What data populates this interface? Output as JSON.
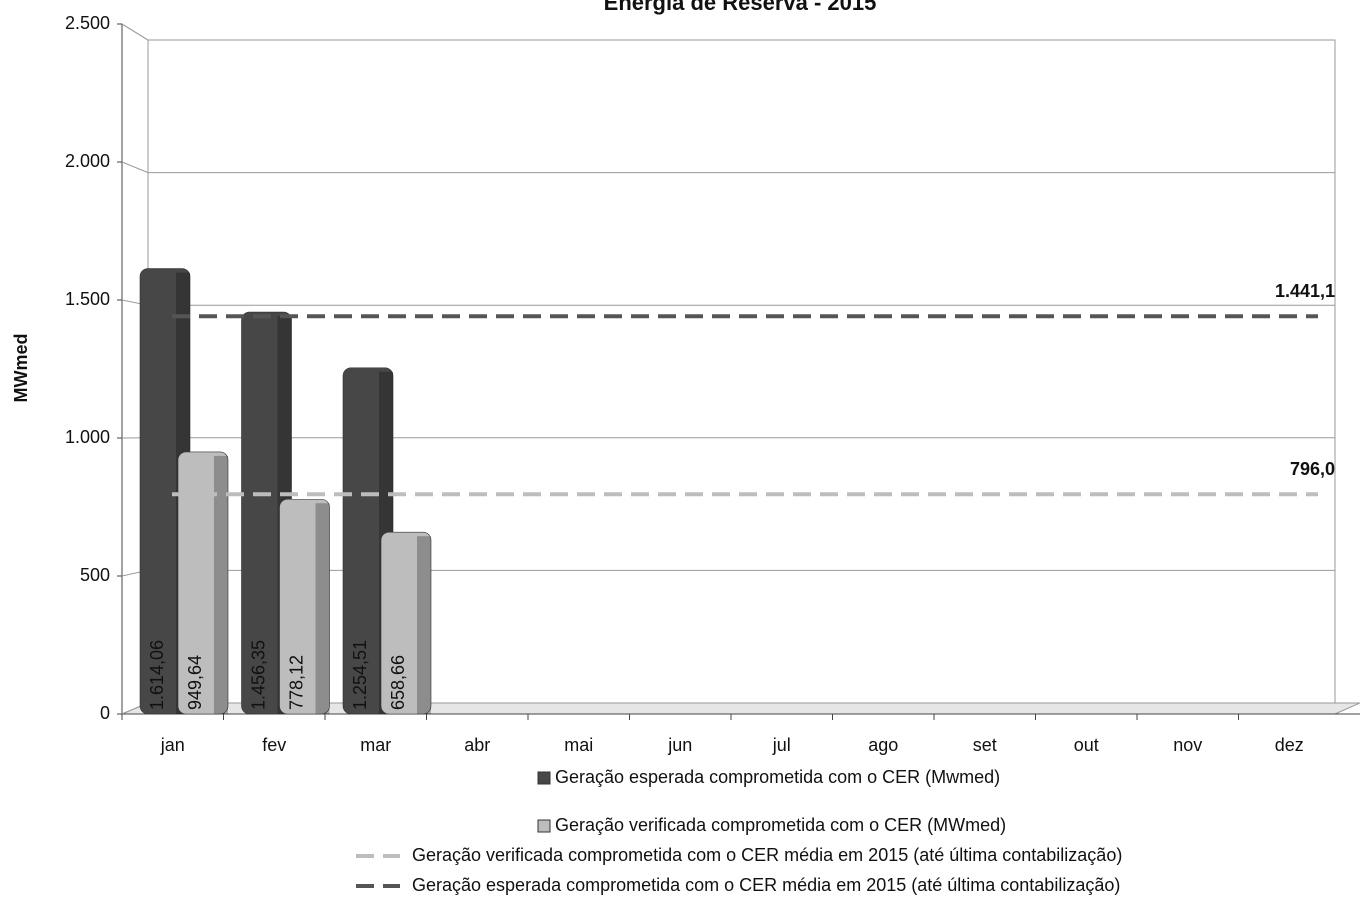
{
  "chart_data": {
    "type": "bar",
    "title": "Energia de Reserva - 2015",
    "y_label": "MWmed",
    "categories": [
      "jan",
      "fev",
      "mar",
      "abr",
      "mai",
      "jun",
      "jul",
      "ago",
      "set",
      "out",
      "nov",
      "dez"
    ],
    "series": [
      {
        "name": "Geração esperada comprometida com o CER (Mwmed)",
        "color": "#474747",
        "values": [
          1614.06,
          1456.35,
          1254.51,
          null,
          null,
          null,
          null,
          null,
          null,
          null,
          null,
          null
        ],
        "value_labels": [
          "1.614,06",
          "1.456,35",
          "1.254,51",
          null,
          null,
          null,
          null,
          null,
          null,
          null,
          null,
          null
        ]
      },
      {
        "name": "Geração verificada comprometida com o CER (MWmed)",
        "color": "#bdbdbd",
        "values": [
          949.64,
          778.12,
          658.66,
          null,
          null,
          null,
          null,
          null,
          null,
          null,
          null,
          null
        ],
        "value_labels": [
          "949,64",
          "778,12",
          "658,66",
          null,
          null,
          null,
          null,
          null,
          null,
          null,
          null,
          null
        ]
      }
    ],
    "reference_lines": [
      {
        "name": "Geração verificada comprometida com o CER média em 2015 (até última contabilização)",
        "value": 796.0,
        "value_label": "796,0",
        "color": "#bdbdbd"
      },
      {
        "name": "Geração esperada comprometida com o CER média em 2015 (até última contabilização)",
        "value": 1441.1,
        "value_label": "1.441,1",
        "color": "#555555"
      }
    ],
    "ylim": [
      0,
      2500
    ],
    "yticks": [
      0,
      500,
      {
        "value": 1000,
        "label": "1.000"
      },
      {
        "value": 1500,
        "label": "1.500"
      },
      {
        "value": 2000,
        "label": "2.000"
      },
      {
        "value": 2500,
        "label": "2.500"
      }
    ],
    "grid": true
  }
}
